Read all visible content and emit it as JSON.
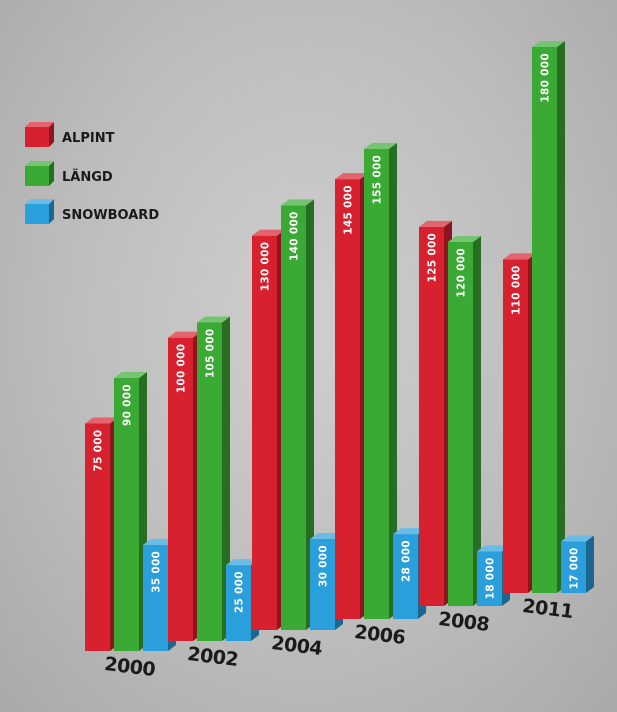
{
  "chart_data": {
    "type": "bar",
    "categories": [
      "2000",
      "2002",
      "2004",
      "2006",
      "2008",
      "2011"
    ],
    "series": [
      {
        "name": "ALPINT",
        "color": "#d8212f",
        "values": [
          75000,
          100000,
          130000,
          145000,
          125000,
          110000
        ],
        "labels": [
          "75 000",
          "100 000",
          "130 000",
          "145 000",
          "125 000",
          "110 000"
        ]
      },
      {
        "name": "LÄNGD",
        "color": "#3aaa35",
        "values": [
          90000,
          105000,
          140000,
          155000,
          120000,
          180000
        ],
        "labels": [
          "90 000",
          "105 000",
          "140 000",
          "155 000",
          "120 000",
          "180 000"
        ]
      },
      {
        "name": "SNOWBOARD",
        "color": "#2a9fdc",
        "values": [
          35000,
          25000,
          30000,
          28000,
          18000,
          17000
        ],
        "labels": [
          "35 000",
          "25 000",
          "30 000",
          "28 000",
          "18 000",
          "17 000"
        ]
      }
    ],
    "legend_position": "top-left",
    "grid": false,
    "ylim": [
      0,
      180000
    ]
  }
}
